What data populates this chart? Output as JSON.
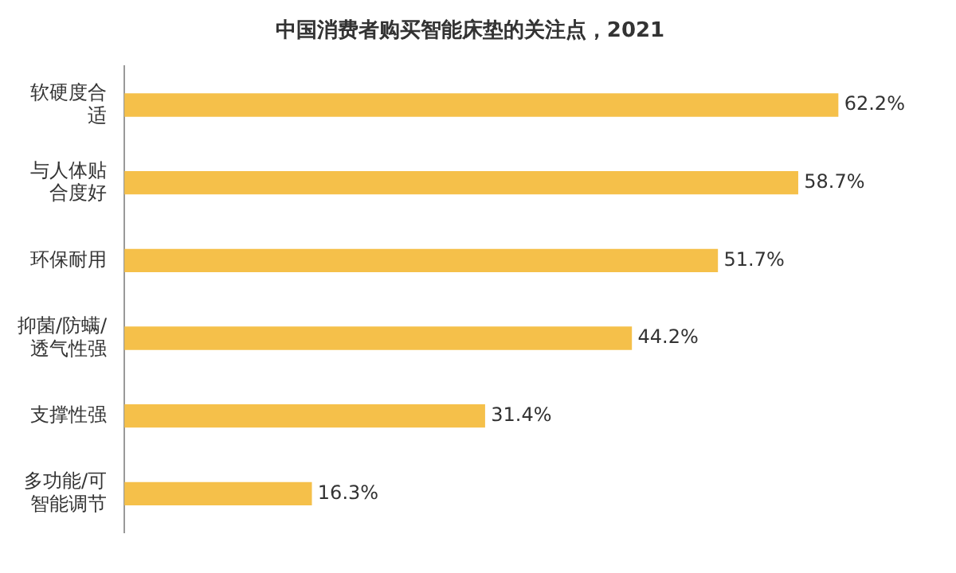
{
  "chart_data": {
    "type": "bar",
    "orientation": "horizontal",
    "title": "中国消费者购买智能床垫的关注点，2021",
    "categories": [
      "软硬度合适",
      "与人体贴合度好",
      "环保耐用",
      "抑菌/防螨/透气性强",
      "支撑性强",
      "多功能/可智能调节"
    ],
    "values": [
      62.2,
      58.7,
      51.7,
      44.2,
      31.4,
      16.3
    ],
    "value_labels": [
      "62.2%",
      "58.7%",
      "51.7%",
      "44.2%",
      "31.4%",
      "16.3%"
    ],
    "color": "#f5c04a",
    "legend": false
  }
}
